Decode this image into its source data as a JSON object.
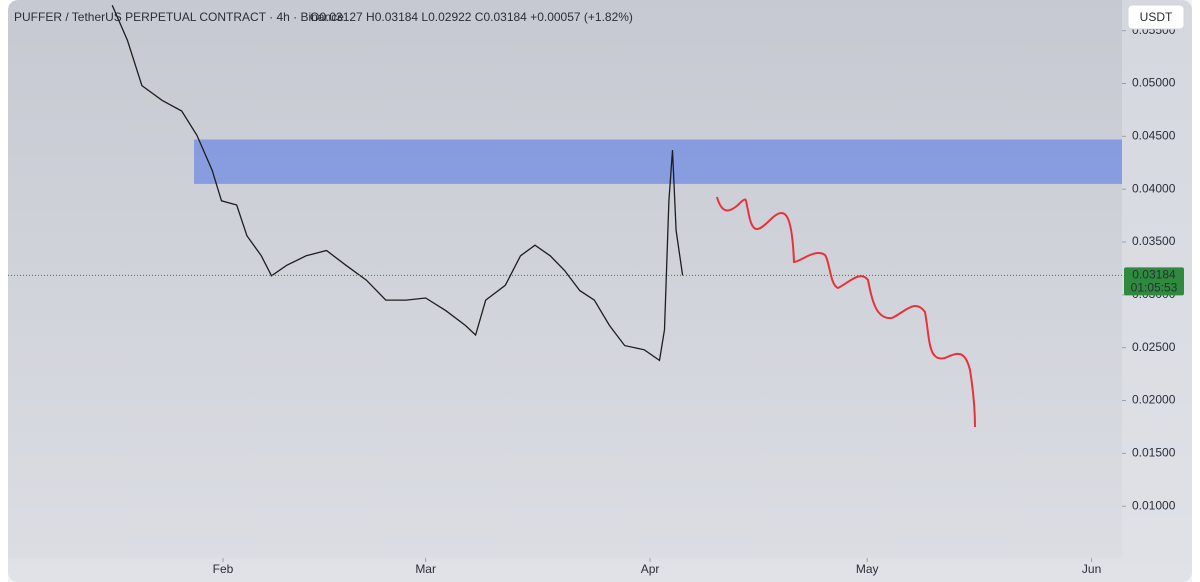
{
  "chart_data": {
    "type": "line",
    "title": "PUFFER / TetherUS PERPETUAL CONTRACT · 4h · Binance",
    "ohlc": "O0.03127 H0.03184 L0.02922 C0.03184 +0.00057 (+1.82%)",
    "currency": "USDT",
    "x": [
      16.7,
      18.8,
      20.8,
      23.6,
      26.3,
      28.4,
      30.5,
      31.8,
      33.9,
      35.3,
      37.3,
      38.7,
      40.8,
      43.5,
      46.3,
      49.0,
      51.8,
      54.5,
      57.3,
      60.0,
      62.8,
      65.5,
      66.9,
      68.3,
      71.0,
      73.1,
      75.1,
      77.2,
      79.2,
      81.3,
      83.3,
      85.4,
      87.5,
      90.2,
      92.3,
      93.0,
      93.6,
      94.1,
      94.6,
      95.5
    ],
    "series": [
      {
        "color": "#1e1e1e",
        "values": [
          0.0574,
          0.0541,
          0.0498,
          0.0484,
          0.0474,
          0.0451,
          0.0418,
          0.0389,
          0.0385,
          0.0356,
          0.0337,
          0.0318,
          0.0328,
          0.0337,
          0.0342,
          0.0328,
          0.0314,
          0.0295,
          0.0295,
          0.0297,
          0.0285,
          0.0271,
          0.0262,
          0.0295,
          0.0309,
          0.0337,
          0.0347,
          0.0337,
          0.0323,
          0.0304,
          0.0295,
          0.0271,
          0.0252,
          0.0248,
          0.0238,
          0.0267,
          0.0389,
          0.0437,
          0.0361,
          0.03184
        ]
      }
    ],
    "zone": {
      "from": 28.0,
      "low": 0.0405,
      "high": 0.0447,
      "color": "#7f97e0"
    },
    "last_price": {
      "value": 0.03184,
      "label": "0.03184"
    },
    "countdown": "01:05:53",
    "price_color": "#2e8b3e",
    "xlim": [
      2.3,
      156.2
    ],
    "ylim": [
      0.0051,
      0.0579
    ],
    "xticks": [
      {
        "value": 32,
        "label": "Feb"
      },
      {
        "value": 60,
        "label": "Mar"
      },
      {
        "value": 91,
        "label": "Apr"
      },
      {
        "value": 121,
        "label": "May"
      },
      {
        "value": 152,
        "label": "Jun"
      }
    ],
    "yticks": [
      {
        "value": 0.01,
        "label": "0.01000"
      },
      {
        "value": 0.015,
        "label": "0.01500"
      },
      {
        "value": 0.02,
        "label": "0.02000"
      },
      {
        "value": 0.025,
        "label": "0.02500"
      },
      {
        "value": 0.03,
        "label": "0.03000"
      },
      {
        "value": 0.035,
        "label": "0.03500"
      },
      {
        "value": 0.04,
        "label": "0.04000"
      },
      {
        "value": 0.045,
        "label": "0.04500"
      },
      {
        "value": 0.05,
        "label": "0.05000"
      },
      {
        "value": 0.055,
        "label": "0.05500"
      }
    ]
  }
}
